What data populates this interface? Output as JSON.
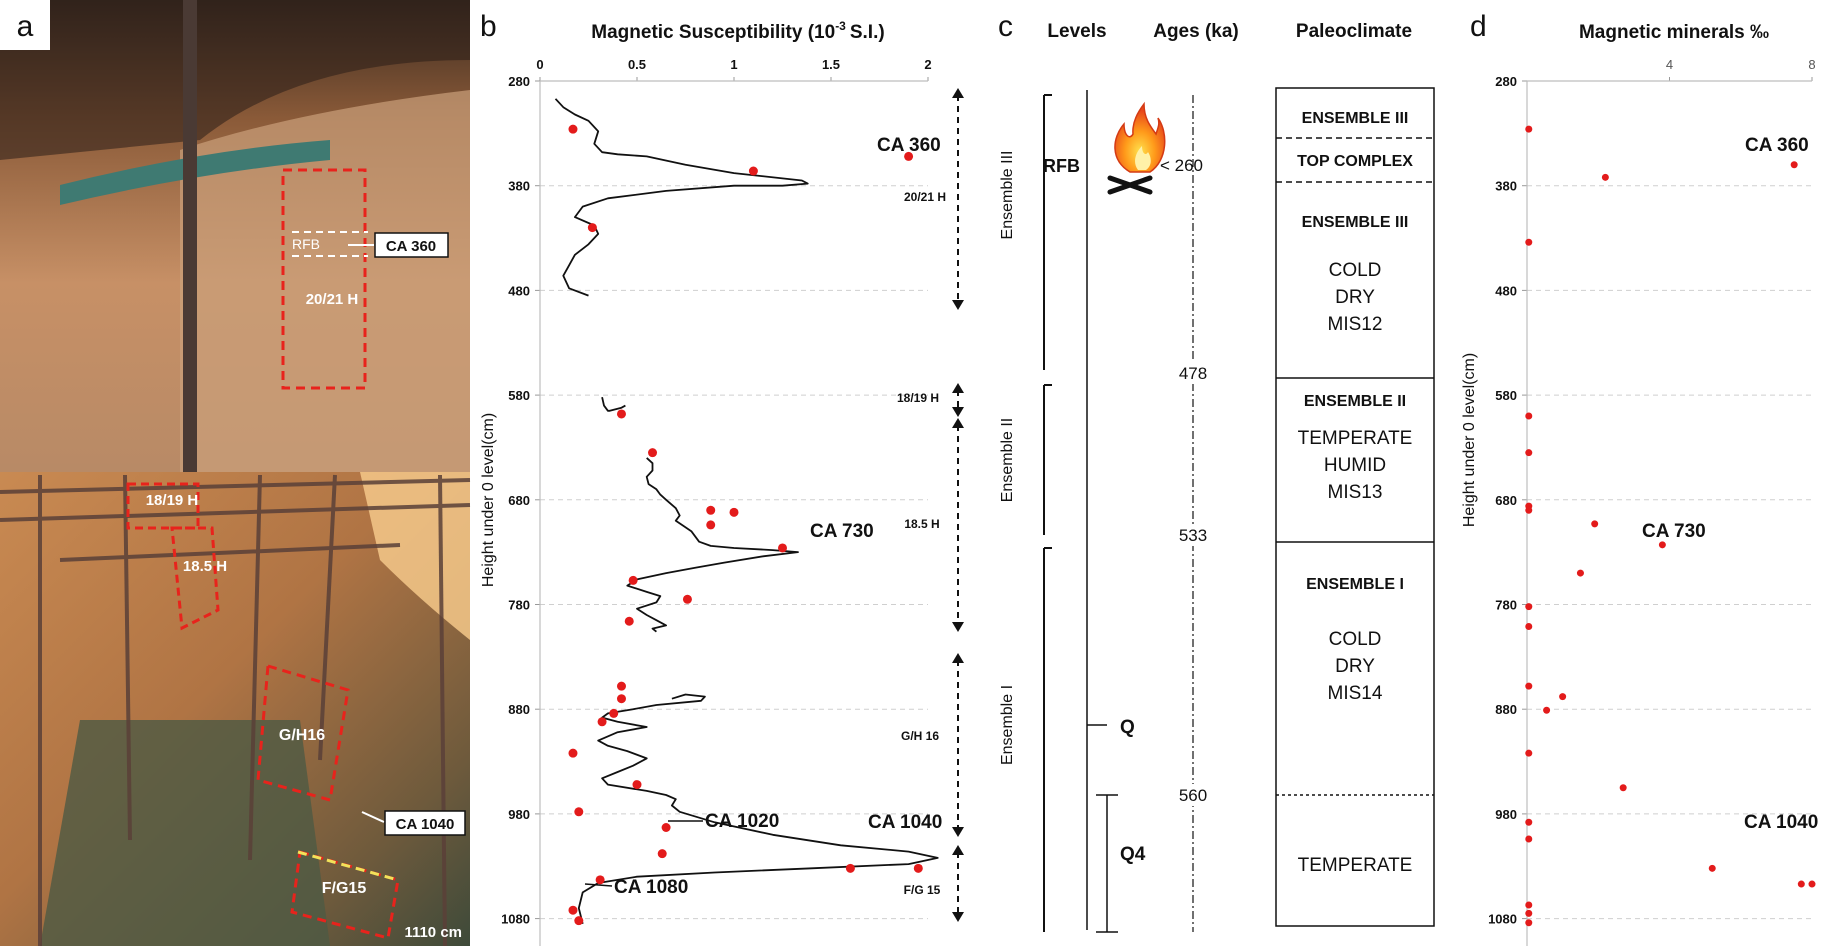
{
  "panels": {
    "a": "a",
    "b": "b",
    "c": "c",
    "d": "d"
  },
  "photo": {
    "labels": {
      "rfb": "RFB",
      "ca360": "CA 360",
      "h2021": "20/21 H",
      "h1819": "18/19 H",
      "h185": "18.5 H",
      "gh16": "G/H16",
      "ca1040": "CA 1040",
      "fg15": "F/G15",
      "depth": "1110 cm"
    }
  },
  "panel_c": {
    "headers": {
      "levels": "Levels",
      "ages": "Ages (ka)",
      "paleo": "Paleoclimate"
    },
    "ensembles": [
      "Ensemble III",
      "Ensemble II",
      "Ensemble I"
    ],
    "rfb": "RFB",
    "age_rfb": "< 260",
    "ages": [
      "478",
      "533",
      "560"
    ],
    "levels": [
      "Q",
      "Q4"
    ],
    "boxes": {
      "e3_top": "ENSEMBLE III",
      "top_complex": "TOP COMPLEX",
      "e3": "ENSEMBLE III",
      "e3_l1": "COLD",
      "e3_l2": "DRY",
      "e3_l3": "MIS12",
      "e2": "ENSEMBLE II",
      "e2_l1": "TEMPERATE",
      "e2_l2": "HUMID",
      "e2_l3": "MIS13",
      "e1": "ENSEMBLE I",
      "e1_l1": "COLD",
      "e1_l2": "DRY",
      "e1_l3": "MIS14",
      "temperate": "TEMPERATE"
    }
  },
  "chart_data": [
    {
      "id": "b",
      "type": "line",
      "title": "Magnetic Susceptibility (10 -3 S.I.)",
      "title_main": "Magnetic Susceptibility (10",
      "title_sup": "-3",
      "title_end": "S.I.)",
      "ylabel": "Height under 0 level(cm)",
      "xlim": [
        0,
        2
      ],
      "ylim": [
        280,
        1110
      ],
      "x_ticks": [
        "0",
        "0.5",
        "1",
        "1.5",
        "2"
      ],
      "y_ticks": [
        "280",
        "380",
        "480",
        "580",
        "680",
        "780",
        "880",
        "980",
        "1080"
      ],
      "grid": true,
      "series": [
        {
          "x": [
            0.08,
            0.12,
            0.18,
            0.25,
            0.3,
            0.28,
            0.32,
            0.4,
            0.55,
            0.75,
            1.0,
            1.35,
            1.38,
            1.25,
            1.0,
            0.65,
            0.35,
            0.22,
            0.18,
            0.28,
            0.3,
            0.25,
            0.18,
            0.15,
            0.12,
            0.15,
            0.25
          ],
          "y": [
            297,
            305,
            312,
            318,
            328,
            340,
            348,
            350,
            352,
            360,
            368,
            375,
            378,
            380,
            380,
            385,
            392,
            400,
            410,
            418,
            426,
            436,
            446,
            456,
            466,
            478,
            485
          ]
        },
        {
          "x": [
            0.32,
            0.33,
            0.35,
            0.36,
            0.42,
            0.44
          ],
          "y": [
            582,
            590,
            595,
            595,
            592,
            590
          ]
        },
        {
          "x": [
            0.55,
            0.58,
            0.58,
            0.55,
            0.56,
            0.6,
            0.62,
            0.65,
            0.7,
            0.72,
            0.7,
            0.74,
            0.78,
            0.8,
            0.82,
            0.88,
            1.0,
            1.2,
            1.33,
            1.15,
            0.95,
            0.8,
            0.65,
            0.5,
            0.45,
            0.55,
            0.62,
            0.6,
            0.5,
            0.55,
            0.6,
            0.65,
            0.58,
            0.6
          ],
          "y": [
            640,
            645,
            652,
            658,
            665,
            670,
            675,
            680,
            688,
            695,
            700,
            705,
            710,
            715,
            720,
            724,
            726,
            728,
            730,
            734,
            740,
            745,
            750,
            756,
            762,
            768,
            772,
            778,
            784,
            790,
            795,
            800,
            803,
            806
          ]
        },
        {
          "x": [
            0.68,
            0.75,
            0.85,
            0.83,
            0.6,
            0.48,
            0.35,
            0.32,
            0.4,
            0.55,
            0.4,
            0.3,
            0.35,
            0.45,
            0.55,
            0.48,
            0.4,
            0.32,
            0.35,
            0.55,
            0.65,
            0.7,
            0.68,
            0.72,
            0.9,
            1.2,
            1.55,
            1.9,
            2.05,
            1.9,
            1.4,
            0.9,
            0.5,
            0.3,
            0.22,
            0.2,
            0.22
          ],
          "y": [
            870,
            866,
            868,
            872,
            876,
            880,
            884,
            888,
            892,
            897,
            902,
            910,
            915,
            920,
            927,
            934,
            940,
            946,
            952,
            958,
            962,
            966,
            972,
            978,
            988,
            1000,
            1010,
            1016,
            1022,
            1028,
            1032,
            1036,
            1040,
            1046,
            1055,
            1070,
            1085
          ]
        }
      ],
      "points": {
        "x": [
          0.17,
          1.9,
          1.1,
          0.27,
          0.42,
          0.58,
          0.88,
          1.0,
          0.88,
          1.25,
          0.48,
          0.76,
          0.46,
          0.42,
          0.42,
          0.38,
          0.32,
          0.17,
          0.5,
          0.2,
          0.65,
          0.63,
          1.6,
          1.95,
          0.31,
          0.17,
          0.2
        ],
        "y": [
          326,
          352,
          366,
          420,
          598,
          635,
          690,
          692,
          704,
          726,
          757,
          775,
          796,
          858,
          870,
          884,
          892,
          922,
          952,
          978,
          993,
          1018,
          1032,
          1032,
          1043,
          1072,
          1082
        ]
      },
      "annotations": [
        "CA 360",
        "CA 730",
        "CA 1020",
        "CA 1040",
        "CA 1080"
      ],
      "ranges": [
        "20/21 H",
        "18/19 H",
        "18.5 H",
        "G/H 16",
        "F/G 15"
      ]
    },
    {
      "id": "d",
      "type": "scatter",
      "title": "Magnetic minerals ‰",
      "ylabel": "Height under 0 level(cm)",
      "xlim": [
        0,
        8
      ],
      "ylim": [
        280,
        1110
      ],
      "x_ticks": [
        "4",
        "8"
      ],
      "y_ticks": [
        "280",
        "380",
        "480",
        "580",
        "680",
        "780",
        "880",
        "980",
        "1080"
      ],
      "grid": true,
      "points": {
        "x": [
          0.05,
          2.2,
          0.05,
          7.5,
          0.05,
          0.05,
          0.05,
          0.05,
          1.9,
          3.8,
          1.5,
          0.05,
          0.05,
          0.05,
          1.0,
          0.55,
          0.05,
          2.7,
          0.05,
          0.05,
          5.2,
          7.7,
          8.0,
          0.05,
          0.05,
          0.05
        ],
        "y": [
          326,
          372,
          434,
          360,
          600,
          635,
          686,
          690,
          703,
          723,
          750,
          782,
          801,
          858,
          868,
          881,
          922,
          955,
          988,
          1004,
          1032,
          1047,
          1047,
          1067,
          1075,
          1084
        ]
      },
      "annotations": [
        "CA 360",
        "CA 730",
        "CA 1040"
      ]
    }
  ]
}
